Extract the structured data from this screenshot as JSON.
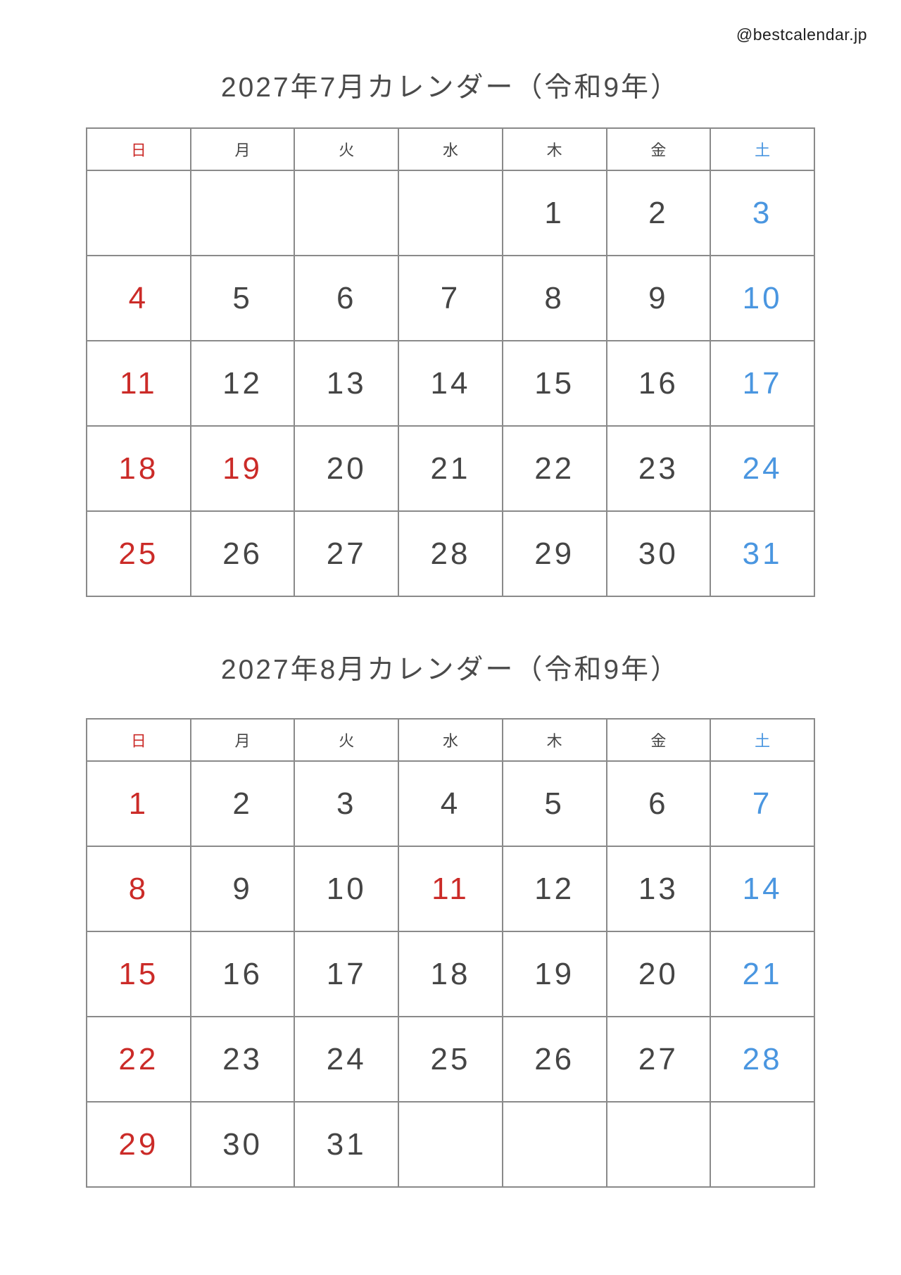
{
  "attribution": "@bestcalendar.jp",
  "colors": {
    "holiday_red": "#cb2b28",
    "saturday_blue": "#4a96e0",
    "text_dark": "#454545",
    "title_gray": "#4a4a4a",
    "border_gray": "#8a8a8a",
    "attribution_black": "#1e1e1e"
  },
  "weekday_headers": [
    {
      "label": "日",
      "type": "sun"
    },
    {
      "label": "月",
      "type": "wd"
    },
    {
      "label": "火",
      "type": "wd"
    },
    {
      "label": "水",
      "type": "wd"
    },
    {
      "label": "木",
      "type": "wd"
    },
    {
      "label": "金",
      "type": "wd"
    },
    {
      "label": "土",
      "type": "sat"
    }
  ],
  "calendars": [
    {
      "title": "2027年7月カレンダー（令和9年）",
      "weeks": [
        [
          {
            "day": "",
            "type": ""
          },
          {
            "day": "",
            "type": ""
          },
          {
            "day": "",
            "type": ""
          },
          {
            "day": "",
            "type": ""
          },
          {
            "day": "1",
            "type": "wd"
          },
          {
            "day": "2",
            "type": "wd"
          },
          {
            "day": "3",
            "type": "sat"
          }
        ],
        [
          {
            "day": "4",
            "type": "sun"
          },
          {
            "day": "5",
            "type": "wd"
          },
          {
            "day": "6",
            "type": "wd"
          },
          {
            "day": "7",
            "type": "wd"
          },
          {
            "day": "8",
            "type": "wd"
          },
          {
            "day": "9",
            "type": "wd"
          },
          {
            "day": "10",
            "type": "sat"
          }
        ],
        [
          {
            "day": "11",
            "type": "sun"
          },
          {
            "day": "12",
            "type": "wd"
          },
          {
            "day": "13",
            "type": "wd"
          },
          {
            "day": "14",
            "type": "wd"
          },
          {
            "day": "15",
            "type": "wd"
          },
          {
            "day": "16",
            "type": "wd"
          },
          {
            "day": "17",
            "type": "sat"
          }
        ],
        [
          {
            "day": "18",
            "type": "sun"
          },
          {
            "day": "19",
            "type": "hol"
          },
          {
            "day": "20",
            "type": "wd"
          },
          {
            "day": "21",
            "type": "wd"
          },
          {
            "day": "22",
            "type": "wd"
          },
          {
            "day": "23",
            "type": "wd"
          },
          {
            "day": "24",
            "type": "sat"
          }
        ],
        [
          {
            "day": "25",
            "type": "sun"
          },
          {
            "day": "26",
            "type": "wd"
          },
          {
            "day": "27",
            "type": "wd"
          },
          {
            "day": "28",
            "type": "wd"
          },
          {
            "day": "29",
            "type": "wd"
          },
          {
            "day": "30",
            "type": "wd"
          },
          {
            "day": "31",
            "type": "sat"
          }
        ]
      ]
    },
    {
      "title": "2027年8月カレンダー（令和9年）",
      "weeks": [
        [
          {
            "day": "1",
            "type": "sun"
          },
          {
            "day": "2",
            "type": "wd"
          },
          {
            "day": "3",
            "type": "wd"
          },
          {
            "day": "4",
            "type": "wd"
          },
          {
            "day": "5",
            "type": "wd"
          },
          {
            "day": "6",
            "type": "wd"
          },
          {
            "day": "7",
            "type": "sat"
          }
        ],
        [
          {
            "day": "8",
            "type": "sun"
          },
          {
            "day": "9",
            "type": "wd"
          },
          {
            "day": "10",
            "type": "wd"
          },
          {
            "day": "11",
            "type": "hol"
          },
          {
            "day": "12",
            "type": "wd"
          },
          {
            "day": "13",
            "type": "wd"
          },
          {
            "day": "14",
            "type": "sat"
          }
        ],
        [
          {
            "day": "15",
            "type": "sun"
          },
          {
            "day": "16",
            "type": "wd"
          },
          {
            "day": "17",
            "type": "wd"
          },
          {
            "day": "18",
            "type": "wd"
          },
          {
            "day": "19",
            "type": "wd"
          },
          {
            "day": "20",
            "type": "wd"
          },
          {
            "day": "21",
            "type": "sat"
          }
        ],
        [
          {
            "day": "22",
            "type": "sun"
          },
          {
            "day": "23",
            "type": "wd"
          },
          {
            "day": "24",
            "type": "wd"
          },
          {
            "day": "25",
            "type": "wd"
          },
          {
            "day": "26",
            "type": "wd"
          },
          {
            "day": "27",
            "type": "wd"
          },
          {
            "day": "28",
            "type": "sat"
          }
        ],
        [
          {
            "day": "29",
            "type": "sun"
          },
          {
            "day": "30",
            "type": "wd"
          },
          {
            "day": "31",
            "type": "wd"
          },
          {
            "day": "",
            "type": ""
          },
          {
            "day": "",
            "type": ""
          },
          {
            "day": "",
            "type": ""
          },
          {
            "day": "",
            "type": ""
          }
        ]
      ]
    }
  ]
}
